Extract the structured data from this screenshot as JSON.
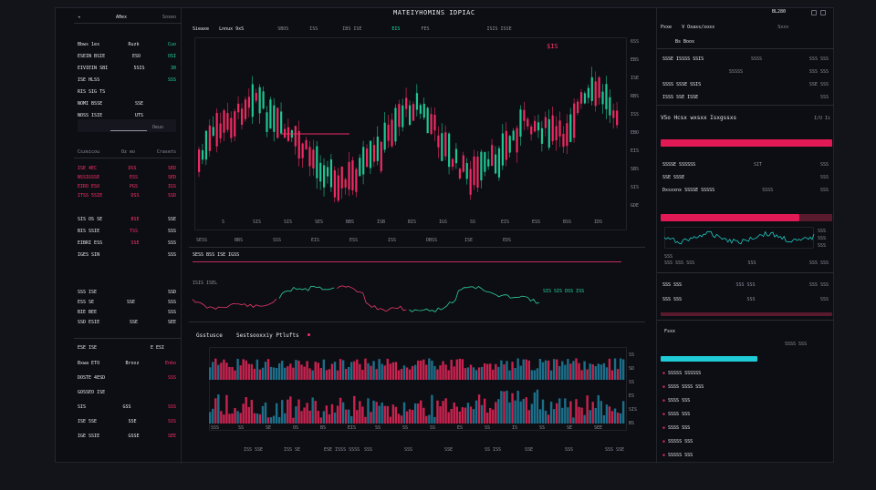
{
  "app": {
    "title": "MATEIYHOMINS IDPIAC",
    "window_badge": "BL280"
  },
  "left_panel": {
    "header": {
      "tab_a": "Aθex",
      "tab_b": "Soxeo"
    },
    "rows_top": [
      {
        "l": "Bbws 1ex",
        "m": "Ruzk",
        "r": "Cuo"
      },
      {
        "l": "ESEIN BSIE",
        "m": "ESO",
        "r": "OSI"
      },
      {
        "l": "EIVIEIN SBI",
        "m": "5SIS",
        "r": "30"
      },
      {
        "l": "ISE HLSS",
        "m": "",
        "r": "SSS"
      },
      {
        "l": "RIS SIG TS",
        "m": "",
        "r": ""
      },
      {
        "l": "NOMI BSSE",
        "m": "SSE",
        "r": ""
      },
      {
        "l": "NOSS ISIE",
        "m": "UTS",
        "r": ""
      }
    ],
    "slider_label": "Oeuo",
    "sub_header": {
      "a": "Cszeicou",
      "b": "Oz eo",
      "c": "Crasets"
    },
    "rows_mid": [
      {
        "l": "ISE 4EC",
        "m": "DSS",
        "r": "SED"
      },
      {
        "l": "NSSIGSSE",
        "m": "ESS",
        "r": "SED"
      },
      {
        "l": "EIRO ESO",
        "m": "PGS",
        "r": "IGS"
      },
      {
        "l": "ITSS 5SIE",
        "m": "DSS",
        "r": "SSD"
      }
    ],
    "rows_lower": [
      {
        "l": "SIS OS SE",
        "m": "BSE",
        "r": "SSE"
      },
      {
        "l": "BIS SSIE",
        "m": "TSS",
        "r": "SSS"
      },
      {
        "l": "EIBRI ESS",
        "m": "SSE",
        "r": "SSS"
      },
      {
        "l": "IGES SIN",
        "m": "",
        "r": "SSS"
      }
    ],
    "rows_bottom": [
      {
        "l": "SSS ISE",
        "m": "",
        "r": "SSD"
      },
      {
        "l": "ESS SE",
        "m": "SSE",
        "r": "SSS"
      },
      {
        "l": "BIE BEE",
        "m": "",
        "r": "SSS"
      },
      {
        "l": "SSD ESIE",
        "m": "SSE",
        "r": "SEE"
      }
    ],
    "footer_section": {
      "title": "ESE ISE",
      "badge": "E ESI"
    },
    "footer_rows": [
      {
        "l": "Bxwa ETO",
        "m": "Broxz",
        "r": "Enbo"
      },
      {
        "l": "DOSTE 4ESD",
        "m": "",
        "r": "SSS"
      },
      {
        "l": "GOSSEO ISE",
        "m": "",
        "r": ""
      },
      {
        "l": "SIS",
        "m": "GSS",
        "r": "SSS"
      },
      {
        "l": "ISE 5SE",
        "m": "SSE",
        "r": "SSS"
      },
      {
        "l": "IGE SSIE",
        "m": "GSSE",
        "r": "SEE"
      }
    ]
  },
  "center_panel": {
    "chart_header": {
      "symbol": "Sieaxe",
      "label": "Lnnux 9xS",
      "tf1": "SBOS",
      "tf2": "ISS",
      "tf3": "IBS ISE",
      "tf4": "EIS",
      "tf5": "FES",
      "price": "$IS",
      "ohlc": "ISIS ISSE"
    },
    "price_ticks_right": [
      "6SS",
      "EBS",
      "ISE",
      "RBS",
      "ISS",
      "EBO",
      "EIS",
      "SBS",
      "SIS",
      "GDE"
    ],
    "x_ticks": [
      "S",
      "SIS",
      "SIS",
      "SES",
      "BBS",
      "ISB",
      "BIS",
      "IGS",
      "SS",
      "EIS",
      "ESS",
      "BSS",
      "IDS"
    ],
    "toolbar": [
      "SESS",
      "BBS",
      "SSS",
      "EIS",
      "ESS",
      "ISS",
      "DBSS",
      "ISE",
      "EDS"
    ],
    "indicator": {
      "title": "SESS BSS ISE IGSS",
      "legend_left": "ISIS ISEL",
      "legend_right": "SIS SIS  DSS ISS"
    },
    "volume": {
      "title": "Gsstusce",
      "subtitle": "Sestsooxxiy Ptlufts",
      "axis_right": [
        "SS",
        "SD",
        "SS",
        "ES",
        "SIS",
        "BS"
      ],
      "x_ticks": [
        "SSS",
        "SS",
        "SE",
        "OS",
        "BS",
        "EIS",
        "SS",
        "SS",
        "SS",
        "ES",
        "SS",
        "IS",
        "SS",
        "SE",
        "SEE"
      ]
    },
    "footer": [
      "ISS SSE",
      "ISS SE",
      "ESE ISSS SSSS",
      "SSS",
      "SSS",
      "SSE",
      "SS ISS",
      "SSE",
      "SSS",
      "SSS SSE"
    ]
  },
  "right_panel": {
    "header": {
      "title": "Pxxe",
      "sub": "V Oxaxs/xoxx",
      "badge": "Sxxx"
    },
    "section_a": {
      "title": "Bs Boox"
    },
    "orders": [
      {
        "l": "SSSE ISSSS SSIS",
        "m": "SSSS",
        "r": "SSS SSS"
      },
      {
        "l": "",
        "m": "SSSSS",
        "r": "SSS SSS"
      },
      {
        "l": "SSSS SSSE SSIS",
        "m": "",
        "r": "SSE SSS"
      },
      {
        "l": "ISSS SSE ISSE",
        "m": "",
        "r": "SSS"
      }
    ],
    "section_b": {
      "title": "V5o Hcsx wxsxx Isxgssxs",
      "badge": "I/U Ii"
    },
    "trades": [
      {
        "l": "SSSSE SSSSSS",
        "m": "SIT",
        "r": "SSS"
      },
      {
        "l": "SSE SSSE",
        "m": "",
        "r": "SSS"
      },
      {
        "l": "Dxsxxnx SSSSE SSSSS",
        "m": "SSSS",
        "r": "SSS"
      }
    ],
    "mini_chart": {
      "title": "SSS",
      "ticks": [
        "SSS",
        "SSS",
        "SSS"
      ],
      "labels": [
        "SSS SSS SSS",
        "SSS",
        "SSS SSS"
      ]
    },
    "stats": [
      {
        "l": "SSS SSS",
        "m": "SSS SSS",
        "r": "SSS SSS"
      },
      {
        "l": "SSS SSS",
        "m": "SSS",
        "r": "SSS"
      }
    ],
    "news": {
      "title": "Fsxx",
      "items": [
        "SSSSS SSSSSS",
        "SSSS SSSS SSS",
        "SSSS SSS",
        "SSSS SSS",
        "SSSS SSS",
        "SSSSS SSS",
        "SSSSS SSS"
      ],
      "date": "SSSS SSS"
    },
    "colors": {
      "accent_red": "#ff2f6a",
      "accent_green": "#20d8a0",
      "accent_cyan": "#1ecbd6"
    }
  }
}
